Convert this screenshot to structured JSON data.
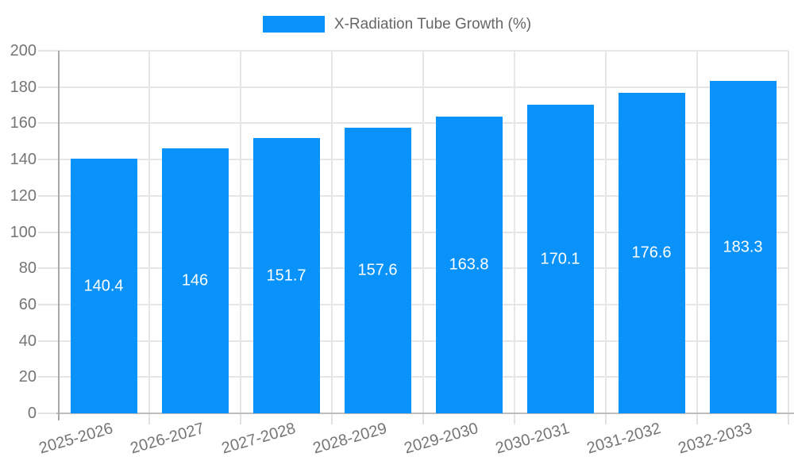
{
  "legend": {
    "label": "X-Radiation Tube Growth (%)"
  },
  "chart_data": {
    "type": "bar",
    "title": "X-Radiation Tube Growth (%)",
    "series": [
      {
        "name": "X-Radiation Tube Growth (%)",
        "values": [
          140.4,
          146,
          151.7,
          157.6,
          163.8,
          170.1,
          176.6,
          183.3
        ],
        "value_labels": [
          "140.4",
          "146",
          "151.7",
          "157.6",
          "163.8",
          "170.1",
          "176.6",
          "183.3"
        ]
      }
    ],
    "categories": [
      "2025-2026",
      "2026-2027",
      "2027-2028",
      "2028-2029",
      "2029-2030",
      "2030-2031",
      "2031-2032",
      "2032-2033"
    ],
    "xlabel": "",
    "ylabel": "",
    "ylim": [
      0,
      200
    ],
    "ytick_step": 20,
    "ytick_labels": [
      "0",
      "20",
      "40",
      "60",
      "80",
      "100",
      "120",
      "140",
      "160",
      "180",
      "200"
    ],
    "grid": true,
    "legend_position": "top-center",
    "bar_label_position": "center-inside",
    "colors": {
      "bar": "#0892fa",
      "bar_label_text": "#ffffff",
      "grid": "#e6e6e6",
      "tick": "#e2e2e2",
      "y_axis_line": "#a8a8a8",
      "x_axis_line": "#bdbdbd",
      "axis_text": "#757575",
      "legend_text": "#666666",
      "background": "#ffffff"
    }
  }
}
